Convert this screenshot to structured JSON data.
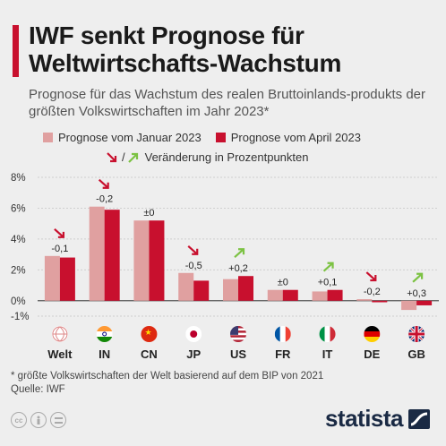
{
  "header": {
    "title": "IWF senkt Prognose für Weltwirtschafts-Wachstum",
    "subtitle": "Prognose für das Wachstum des realen Bruttoinlands-produkts der größten Volkswirtschaften im Jahr 2023*"
  },
  "legend": {
    "january": "Prognose vom Januar 2023",
    "april": "Prognose vom April 2023",
    "change_separator": "/",
    "change": "Veränderung in Prozentpunkten"
  },
  "colors": {
    "january": "#e0a0a0",
    "april": "#c8102e",
    "arrow_down": "#c8102e",
    "arrow_up": "#7cc243",
    "accent": "#c8102e",
    "brand": "#1a2a44"
  },
  "chart_data": {
    "type": "bar",
    "categories": [
      "Welt",
      "IN",
      "CN",
      "JP",
      "US",
      "FR",
      "IT",
      "DE",
      "GB"
    ],
    "series": [
      {
        "name": "Prognose vom Januar 2023",
        "values": [
          2.9,
          6.1,
          5.2,
          1.8,
          1.4,
          0.7,
          0.6,
          0.1,
          -0.6
        ]
      },
      {
        "name": "Prognose vom April 2023",
        "values": [
          2.8,
          5.9,
          5.2,
          1.3,
          1.6,
          0.7,
          0.7,
          -0.1,
          -0.3
        ]
      }
    ],
    "change_labels": [
      "-0,1",
      "-0,2",
      "±0",
      "-0,5",
      "+0,2",
      "±0",
      "+0,1",
      "-0,2",
      "+0,3"
    ],
    "change_direction": [
      "down",
      "down",
      "none",
      "down",
      "up",
      "none",
      "up",
      "down",
      "up"
    ],
    "flags": [
      "globe-icon",
      "india-flag-icon",
      "china-flag-icon",
      "japan-flag-icon",
      "usa-flag-icon",
      "france-flag-icon",
      "italy-flag-icon",
      "germany-flag-icon",
      "uk-flag-icon"
    ],
    "ylim": [
      -1,
      8
    ],
    "yticks": [
      8,
      6,
      4,
      2,
      0,
      -1
    ],
    "ytick_labels": [
      "8%",
      "6%",
      "4%",
      "2%",
      "0%",
      "-1%"
    ],
    "grid": true
  },
  "footnote": {
    "line1": "* größte Volkswirtschaften der Welt basierend auf dem BIP von 2021",
    "line2": "Quelle: IWF"
  },
  "brand": {
    "name": "statista"
  }
}
